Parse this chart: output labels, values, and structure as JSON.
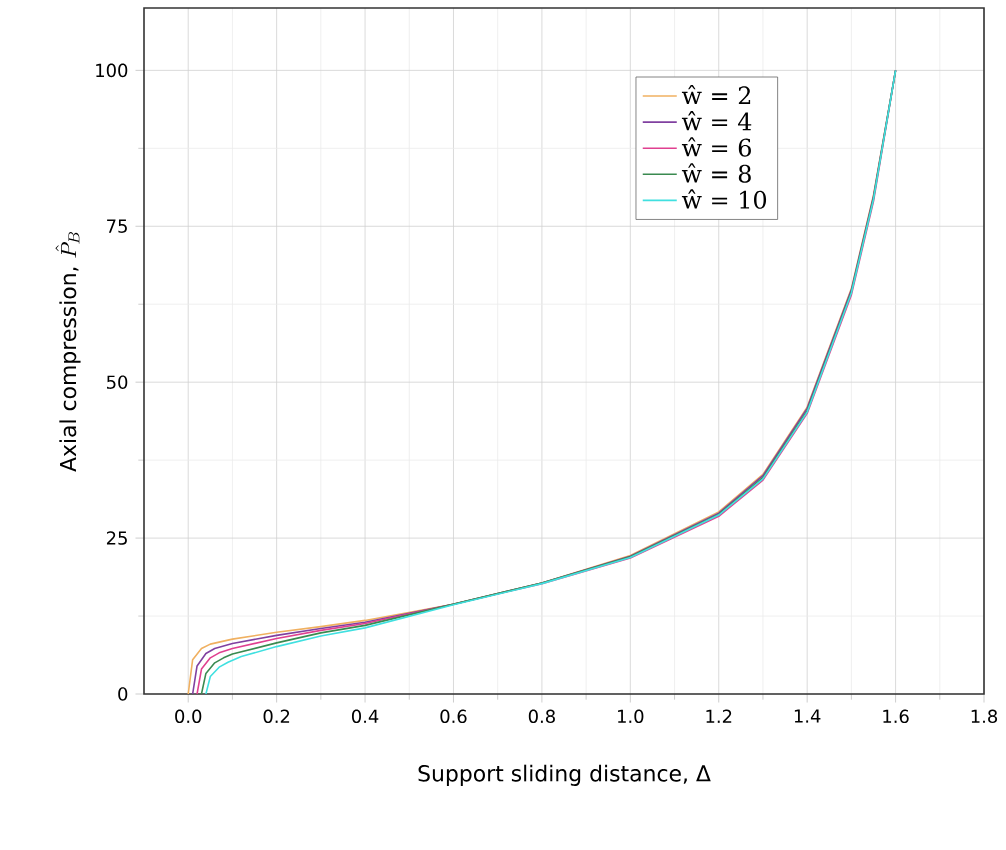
{
  "chart_data": {
    "type": "line",
    "xlabel": "Support sliding distance, Δ",
    "ylabel": "\\text{Axial compression, }\\hat{P}_{B}",
    "xlim": [
      -0.1,
      1.8
    ],
    "ylim": [
      0,
      110
    ],
    "xticks": [
      {
        "value": 0,
        "label": "0.0"
      },
      0.2,
      0.4,
      0.6,
      0.8,
      {
        "value": 1,
        "label": "1.0"
      },
      1.2,
      1.4,
      1.6,
      1.8
    ],
    "yticks": [
      0,
      25,
      50,
      75,
      100
    ],
    "grid": true,
    "legend": "top",
    "marker": "none",
    "line_style": "solid",
    "series": [
      {
        "name": "ŵ = 2",
        "color": "#f0b060",
        "x": [
          0.0,
          0.01,
          0.03,
          0.05,
          0.1,
          0.2,
          0.3,
          0.4,
          0.6,
          0.8,
          1.0,
          1.2,
          1.3,
          1.4,
          1.5,
          1.55,
          1.6
        ],
        "values": [
          0,
          5.5,
          7.3,
          8.0,
          8.8,
          9.9,
          10.8,
          11.8,
          14.4,
          17.8,
          22.2,
          29.2,
          35.2,
          46.0,
          65.0,
          80.0,
          100
        ]
      },
      {
        "name": "ŵ = 4",
        "color": "#8040a0",
        "x": [
          0.01,
          0.02,
          0.04,
          0.06,
          0.1,
          0.2,
          0.3,
          0.4,
          0.6,
          0.8,
          1.0,
          1.2,
          1.3,
          1.4,
          1.5,
          1.55,
          1.6
        ],
        "values": [
          0,
          4.5,
          6.5,
          7.3,
          8.1,
          9.4,
          10.5,
          11.5,
          14.4,
          17.8,
          22.1,
          29.0,
          35.0,
          45.8,
          64.8,
          79.8,
          100
        ]
      },
      {
        "name": "ŵ = 6",
        "color": "#e04090",
        "x": [
          0.02,
          0.03,
          0.05,
          0.07,
          0.1,
          0.2,
          0.3,
          0.4,
          0.6,
          0.8,
          1.0,
          1.2,
          1.3,
          1.4,
          1.5,
          1.55,
          1.6
        ],
        "values": [
          0,
          4.0,
          5.8,
          6.6,
          7.3,
          8.9,
          10.2,
          11.3,
          14.4,
          17.7,
          21.8,
          28.5,
          34.3,
          45.0,
          64.0,
          79.0,
          100
        ]
      },
      {
        "name": "ŵ = 8",
        "color": "#3a8a50",
        "x": [
          0.03,
          0.04,
          0.06,
          0.08,
          0.1,
          0.2,
          0.3,
          0.4,
          0.6,
          0.8,
          1.0,
          1.2,
          1.3,
          1.4,
          1.5,
          1.55,
          1.6
        ],
        "values": [
          0,
          3.3,
          5.0,
          5.8,
          6.4,
          8.2,
          9.8,
          11.0,
          14.4,
          17.8,
          22.0,
          28.8,
          34.7,
          45.4,
          64.5,
          79.5,
          100
        ]
      },
      {
        "name": "ŵ = 10",
        "color": "#40e0e0",
        "x": [
          0.04,
          0.05,
          0.07,
          0.09,
          0.12,
          0.2,
          0.3,
          0.4,
          0.6,
          0.8,
          1.0,
          1.2,
          1.3,
          1.4,
          1.5,
          1.55,
          1.6
        ],
        "values": [
          0,
          2.8,
          4.3,
          5.1,
          6.0,
          7.6,
          9.3,
          10.6,
          14.3,
          17.7,
          21.9,
          28.7,
          34.5,
          45.2,
          64.3,
          79.3,
          100
        ]
      }
    ]
  }
}
